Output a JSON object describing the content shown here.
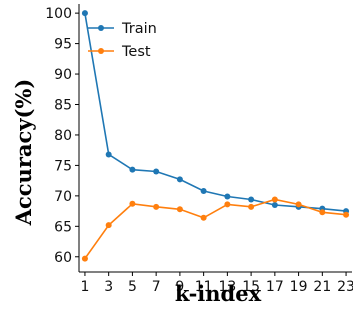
{
  "chart_data": {
    "type": "line",
    "title": "",
    "xlabel": "k-index",
    "ylabel": "Accuracy(%)",
    "x": [
      1,
      3,
      5,
      7,
      9,
      11,
      13,
      15,
      17,
      19,
      21,
      23
    ],
    "xticks": [
      "1",
      "3",
      "5",
      "7",
      "9",
      "11",
      "13",
      "15",
      "17",
      "19",
      "21",
      "23"
    ],
    "yticks": [
      "60",
      "65",
      "70",
      "75",
      "80",
      "85",
      "90",
      "95",
      "100"
    ],
    "xlim": [
      0.5,
      23.5
    ],
    "ylim": [
      57.5,
      101.5
    ],
    "grid": false,
    "legend": "top-left",
    "series": [
      {
        "name": "Train",
        "color": "#1f77b4",
        "values": [
          100.0,
          76.8,
          74.3,
          74.0,
          72.7,
          70.8,
          69.9,
          69.4,
          68.5,
          68.2,
          67.9,
          67.5
        ]
      },
      {
        "name": "Test",
        "color": "#ff7f0e",
        "values": [
          59.7,
          65.2,
          68.7,
          68.2,
          67.8,
          66.4,
          68.6,
          68.2,
          69.4,
          68.6,
          67.3,
          66.9
        ]
      }
    ]
  }
}
